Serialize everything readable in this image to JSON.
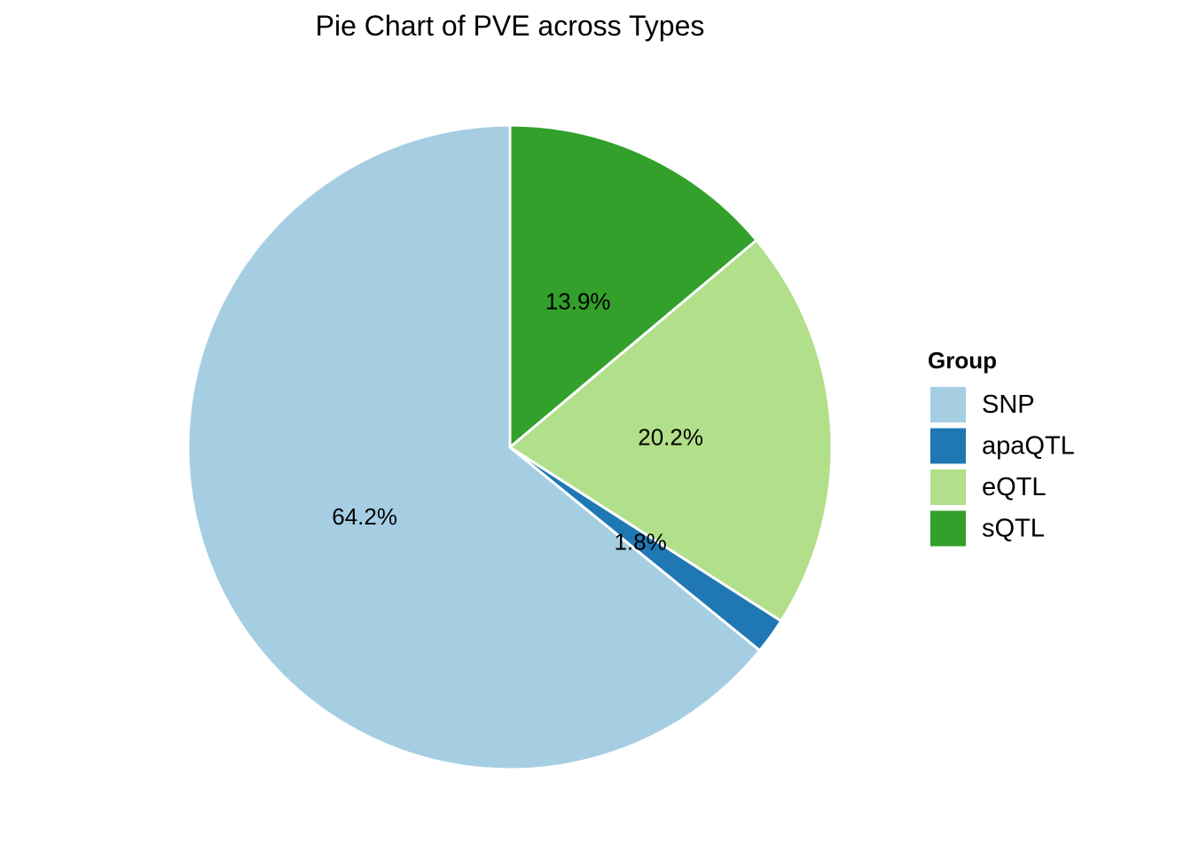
{
  "chart_data": {
    "type": "pie",
    "title": "Pie Chart of PVE across Types",
    "start_angle_deg": 0,
    "direction": "counterclockwise",
    "legend": {
      "title": "Group",
      "position": "right"
    },
    "slices": [
      {
        "name": "sQTL",
        "value": 13.9,
        "label": "13.9%",
        "color": "#33A02C"
      },
      {
        "name": "eQTL",
        "value": 20.2,
        "label": "20.2%",
        "color": "#B2DF8A"
      },
      {
        "name": "apaQTL",
        "value": 1.8,
        "label": "1.8%",
        "color": "#1F78B4"
      },
      {
        "name": "SNP",
        "value": 64.2,
        "label": "64.2%",
        "color": "#A6CEE3"
      }
    ],
    "legend_order": [
      "SNP",
      "apaQTL",
      "eQTL",
      "sQTL"
    ],
    "slice_border_color": "#FFFFFF"
  }
}
